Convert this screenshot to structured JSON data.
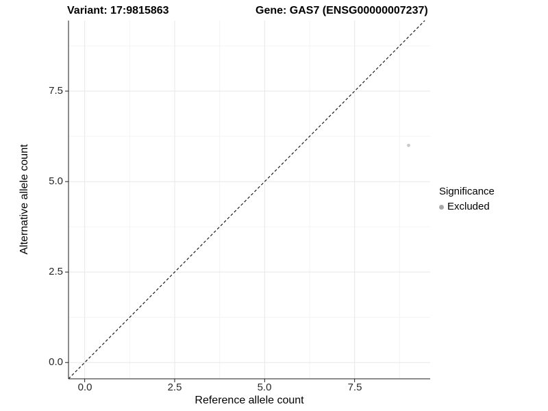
{
  "header": {
    "variant_title": "Variant: 17:9815863",
    "gene_title": "Gene: GAS7 (ENSG00000007237)"
  },
  "chart_data": {
    "type": "scatter",
    "title": "Variant: 17:9815863    Gene: GAS7 (ENSG00000007237)",
    "xlabel": "Reference allele count",
    "ylabel": "Alternative allele count",
    "x_ticks": [
      "0.0",
      "2.5",
      "5.0",
      "7.5"
    ],
    "y_ticks": [
      "0.0",
      "2.5",
      "5.0",
      "7.5"
    ],
    "x_breaks": [
      0,
      2.5,
      5,
      7.5
    ],
    "y_breaks": [
      0,
      2.5,
      5,
      7.5
    ],
    "minor_breaks": [
      1.25,
      3.75,
      6.25,
      8.75
    ],
    "xlim": [
      -0.45,
      9.6
    ],
    "ylim": [
      -0.45,
      9.45
    ],
    "grid": true,
    "points": [
      {
        "x": 9,
        "y": 6,
        "series": "Excluded"
      }
    ],
    "reference_line": {
      "kind": "identity",
      "slope": 1,
      "intercept": 0,
      "style": "dashed"
    },
    "legend": {
      "title": "Significance",
      "position": "right",
      "entries": [
        {
          "label": "Excluded",
          "color": "#a8a8a8"
        }
      ]
    },
    "colors": {
      "point": "#c9c9c9",
      "grid_major": "#e7e7e7",
      "grid_minor": "#f3f3f3",
      "axis": "#1a1a1a",
      "reference_line": "#1a1a1a"
    }
  }
}
